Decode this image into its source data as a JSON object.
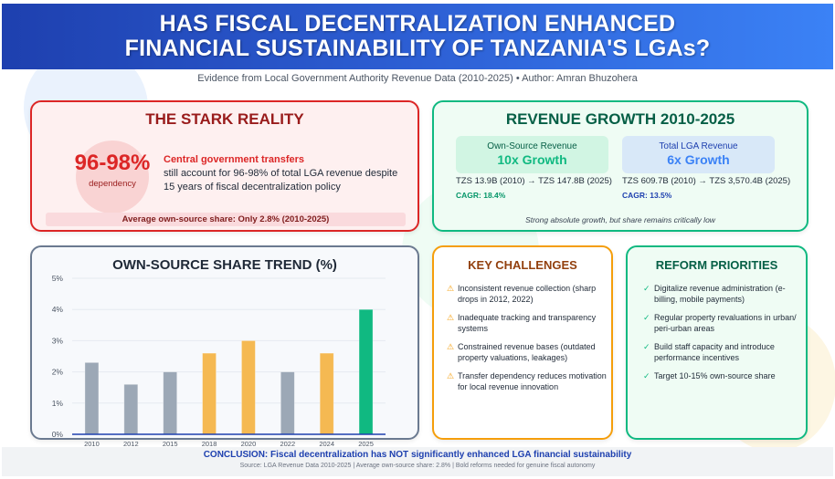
{
  "header": {
    "title_line1": "HAS FISCAL DECENTRALIZATION ENHANCED",
    "title_line2": "FINANCIAL SUSTAINABILITY OF TANZANIA'S LGAs?",
    "subtitle": "Evidence from Local Government Authority Revenue Data (2010-2025) • Author: Amran Bhuzohera"
  },
  "stark_reality": {
    "title": "THE STARK REALITY",
    "dependency_value": "96-98%",
    "dependency_label": "dependency",
    "highlight": "Central government transfers",
    "body": "still account for 96-98% of total LGA revenue despite 15 years of fiscal decentralization policy",
    "average_note": "Average own-source share: Only 2.8% (2010-2025)"
  },
  "revenue_growth": {
    "title": "REVENUE GROWTH 2010-2025",
    "own_source": {
      "label": "Own-Source Revenue",
      "growth": "10x Growth",
      "range": "TZS 13.9B (2010) → TZS 147.8B (2025)",
      "cagr": "CAGR: 18.4%"
    },
    "total": {
      "label": "Total LGA Revenue",
      "growth": "6x Growth",
      "range": "TZS 609.7B (2010) → TZS 3,570.4B (2025)",
      "cagr": "CAGR: 13.5%"
    },
    "note": "Strong absolute growth, but share remains critically low"
  },
  "chart_data": {
    "type": "bar",
    "title": "OWN-SOURCE SHARE TREND (%)",
    "categories": [
      "2010",
      "2012",
      "2015",
      "2018",
      "2020",
      "2022",
      "2024",
      "2025"
    ],
    "values": [
      2.3,
      1.6,
      2.0,
      2.6,
      3.0,
      2.0,
      2.6,
      4.0
    ],
    "bar_colors": [
      "#9ca8b6",
      "#9ca8b6",
      "#9ca8b6",
      "#f5b952",
      "#f5b952",
      "#9ca8b6",
      "#f5b952",
      "#10b981"
    ],
    "ylim": [
      0,
      5
    ],
    "yticks": [
      0,
      1,
      2,
      3,
      4,
      5
    ],
    "ytick_labels": [
      "0%",
      "1%",
      "2%",
      "3%",
      "4%",
      "5%"
    ],
    "xlabel": "",
    "ylabel": "",
    "grid": true,
    "baseline_color": "#1e40af"
  },
  "challenges": {
    "title": "KEY CHALLENGES",
    "icon": "warning-icon",
    "items": [
      "Inconsistent revenue collection (sharp drops in 2012, 2022)",
      "Inadequate tracking and transparency systems",
      "Constrained revenue bases (outdated property valuations, leakages)",
      "Transfer dependency reduces motivation for local revenue innovation"
    ]
  },
  "reforms": {
    "title": "REFORM PRIORITIES",
    "icon": "check-icon",
    "items": [
      "Digitalize revenue administration (e-billing, mobile payments)",
      "Regular property revaluations in urban/ peri-urban areas",
      "Build staff capacity and introduce performance incentives",
      "Target 10-15% own-source share"
    ]
  },
  "footer": {
    "conclusion": "CONCLUSION: Fiscal decentralization has NOT significantly enhanced LGA financial sustainability",
    "source": "Source: LGA Revenue Data 2010-2025 | Average own-source share: 2.8% | Bold reforms needed for genuine fiscal autonomy"
  },
  "colors": {
    "header_start": "#1e40af",
    "header_end": "#3b82f6",
    "danger": "#dc2626",
    "success": "#10b981",
    "warning": "#f59e0b",
    "neutral_bar": "#9ca8b6"
  }
}
